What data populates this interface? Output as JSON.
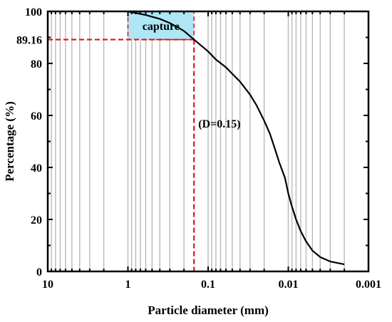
{
  "chart_data": {
    "type": "line",
    "xlabel": "Particle diameter (mm)",
    "ylabel": "Percentage (%)",
    "x_scale": "log",
    "x_reversed": true,
    "xlim": [
      10,
      0.001
    ],
    "ylim": [
      0,
      100
    ],
    "x_ticks": [
      {
        "value": 10,
        "label": "10"
      },
      {
        "value": 1,
        "label": "1"
      },
      {
        "value": 0.1,
        "label": "0.1"
      },
      {
        "value": 0.01,
        "label": "0.01"
      },
      {
        "value": 0.001,
        "label": "0.001"
      }
    ],
    "y_ticks": [
      {
        "value": 0,
        "label": "0"
      },
      {
        "value": 20,
        "label": "20"
      },
      {
        "value": 40,
        "label": "40"
      },
      {
        "value": 60,
        "label": "60"
      },
      {
        "value": 80,
        "label": "80"
      },
      {
        "value": 100,
        "label": "100"
      }
    ],
    "grid": "vertical minor gridlines at log decades",
    "series": [
      {
        "color": "#000000",
        "x": [
          1,
          0.8,
          0.6,
          0.4,
          0.3,
          0.2,
          0.15,
          0.1,
          0.08,
          0.06,
          0.05,
          0.04,
          0.03,
          0.025,
          0.02,
          0.017,
          0.015,
          0.013,
          0.011,
          0.01,
          0.009,
          0.008,
          0.007,
          0.006,
          0.005,
          0.004,
          0.003,
          0.002
        ],
        "y": [
          100,
          99.4,
          98.6,
          97.1,
          95.5,
          92.5,
          89.16,
          84.6,
          81.5,
          78.5,
          76,
          73,
          68,
          64,
          58,
          53,
          48,
          42,
          36,
          30,
          25,
          20,
          15.5,
          11.5,
          8,
          5.5,
          3.8,
          2.7
        ]
      }
    ],
    "annotations": {
      "reference_value_label": "89.16",
      "reference_y": 89.16,
      "reference_x": 0.15,
      "reference_line_color": "#e0141e",
      "d_label": "(D=0.15)",
      "highlight_label": "capture",
      "highlight_color": "#aee6f5",
      "highlight_x_range": [
        1,
        0.15
      ],
      "highlight_y_range": [
        89.16,
        100
      ]
    }
  }
}
